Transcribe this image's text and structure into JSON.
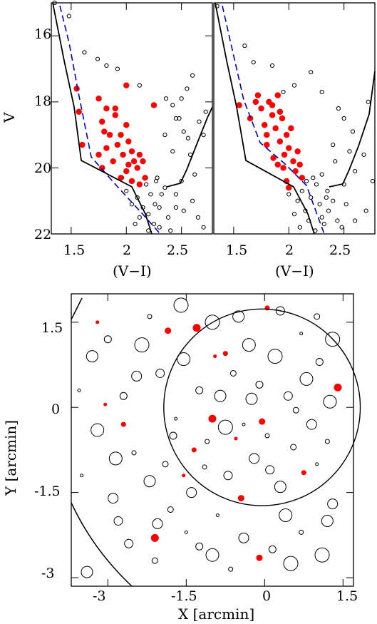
{
  "chart_data": [
    {
      "type": "scatter",
      "panel": "cmd-left",
      "xlabel": "(V−I)",
      "ylabel": "V",
      "xlim": [
        1.32,
        2.78
      ],
      "ylim": [
        22,
        15
      ],
      "y_inverted": true,
      "x_ticks": [
        "1.5",
        "2",
        "2.5"
      ],
      "y_ticks": [
        "16",
        "18",
        "20",
        "22"
      ],
      "colors": {
        "field": "#000000",
        "members": "#ff0000",
        "fit": "#0000cc"
      },
      "series": [
        {
          "points": [
            [
              1.55,
              17.6
            ],
            [
              1.57,
              18.3
            ],
            [
              1.6,
              19.3
            ],
            [
              1.75,
              17.9
            ],
            [
              1.78,
              18.6
            ],
            [
              1.8,
              18.9
            ],
            [
              1.82,
              19.4
            ],
            [
              1.85,
              19.0
            ],
            [
              1.9,
              18.2
            ],
            [
              1.88,
              19.8
            ],
            [
              1.92,
              19.3
            ],
            [
              1.95,
              19.0
            ],
            [
              1.97,
              19.6
            ],
            [
              2.0,
              18.7
            ],
            [
              2.02,
              19.2
            ],
            [
              2.05,
              19.5
            ],
            [
              2.07,
              19.8
            ],
            [
              2.1,
              20.0
            ],
            [
              2.12,
              19.6
            ],
            [
              2.15,
              19.8
            ],
            [
              2.0,
              20.1
            ],
            [
              1.95,
              20.3
            ],
            [
              1.75,
              19.6
            ],
            [
              1.78,
              20.0
            ],
            [
              2.05,
              20.4
            ],
            [
              2.17,
              20.3
            ],
            [
              2.25,
              18.1
            ],
            [
              2.0,
              17.5
            ],
            [
              1.9,
              18.4
            ],
            [
              1.82,
              18.2
            ],
            [
              2.02,
              19.9
            ],
            [
              2.12,
              20.5
            ]
          ]
        },
        {
          "points": [
            [
              1.35,
              15.0
            ],
            [
              1.48,
              15.4
            ],
            [
              1.62,
              16.5
            ],
            [
              1.74,
              16.7
            ],
            [
              1.82,
              16.9
            ],
            [
              1.92,
              17.0
            ],
            [
              2.12,
              17.5
            ],
            [
              2.36,
              17.9
            ],
            [
              2.42,
              18.1
            ],
            [
              2.48,
              18.5
            ],
            [
              2.52,
              18.9
            ],
            [
              2.56,
              19.1
            ],
            [
              2.58,
              19.6
            ],
            [
              2.62,
              20.2
            ],
            [
              2.7,
              19.0
            ],
            [
              2.72,
              18.3
            ],
            [
              2.66,
              18.6
            ],
            [
              2.45,
              18.5
            ],
            [
              2.5,
              17.9
            ],
            [
              2.55,
              17.6
            ],
            [
              2.6,
              17.2
            ],
            [
              2.35,
              19.0
            ],
            [
              2.42,
              19.5
            ],
            [
              2.28,
              20.3
            ],
            [
              2.32,
              20.8
            ],
            [
              2.5,
              20.4
            ],
            [
              2.45,
              21.2
            ],
            [
              2.38,
              21.5
            ],
            [
              2.52,
              21.3
            ],
            [
              2.18,
              20.5
            ],
            [
              2.22,
              20.8
            ],
            [
              2.26,
              21.1
            ],
            [
              2.2,
              21.4
            ],
            [
              2.25,
              21.7
            ],
            [
              2.3,
              21.2
            ],
            [
              2.27,
              20.4
            ],
            [
              2.35,
              20.6
            ],
            [
              2.1,
              20.9
            ],
            [
              2.15,
              21.2
            ],
            [
              2.12,
              21.5
            ],
            [
              2.2,
              21.9
            ],
            [
              2.3,
              21.8
            ],
            [
              2.4,
              21.9
            ],
            [
              2.05,
              21.1
            ],
            [
              2.08,
              21.7
            ],
            [
              2.45,
              20.8
            ],
            [
              2.6,
              21.0
            ],
            [
              2.65,
              21.5
            ],
            [
              2.7,
              21.8
            ],
            [
              2.0,
              20.7
            ],
            [
              1.96,
              20.3
            ]
          ]
        }
      ]
    },
    {
      "type": "scatter",
      "panel": "cmd-right",
      "xlabel": "(V−I)",
      "xlim": [
        1.32,
        2.78
      ],
      "ylim": [
        22,
        15
      ],
      "y_inverted": true,
      "x_ticks": [
        "1.5",
        "2",
        "2.5"
      ],
      "colors": {
        "field": "#000000",
        "members": "#ff0000",
        "fit": "#0000cc"
      },
      "series": [
        {
          "points": [
            [
              1.55,
              18.1
            ],
            [
              1.65,
              18.5
            ],
            [
              1.72,
              17.8
            ],
            [
              1.75,
              18.2
            ],
            [
              1.78,
              18.7
            ],
            [
              1.8,
              19.0
            ],
            [
              1.82,
              18.0
            ],
            [
              1.85,
              18.4
            ],
            [
              1.88,
              18.8
            ],
            [
              1.9,
              17.8
            ],
            [
              1.92,
              19.2
            ],
            [
              1.94,
              18.5
            ],
            [
              1.96,
              19.6
            ],
            [
              1.98,
              19.0
            ],
            [
              2.0,
              19.4
            ],
            [
              2.02,
              18.8
            ],
            [
              2.04,
              19.8
            ],
            [
              2.06,
              20.1
            ],
            [
              1.98,
              20.4
            ],
            [
              2.08,
              19.5
            ],
            [
              1.86,
              19.7
            ],
            [
              1.8,
              19.3
            ],
            [
              1.9,
              19.9
            ],
            [
              2.12,
              20.3
            ],
            [
              1.95,
              20.0
            ],
            [
              2.0,
              20.6
            ],
            [
              1.85,
              18.1
            ],
            [
              1.7,
              18.0
            ],
            [
              2.1,
              19.9
            ],
            [
              1.92,
              18.3
            ]
          ]
        },
        {
          "points": [
            [
              1.35,
              15.1
            ],
            [
              1.6,
              16.3
            ],
            [
              1.68,
              16.8
            ],
            [
              1.85,
              16.9
            ],
            [
              1.95,
              17.7
            ],
            [
              2.05,
              17.5
            ],
            [
              2.2,
              17.1
            ],
            [
              2.3,
              17.7
            ],
            [
              2.45,
              18.2
            ],
            [
              2.5,
              18.5
            ],
            [
              2.55,
              19.5
            ],
            [
              2.6,
              20.1
            ],
            [
              2.58,
              18.9
            ],
            [
              2.72,
              18.0
            ],
            [
              2.68,
              19.6
            ],
            [
              2.76,
              20.4
            ],
            [
              2.7,
              21.3
            ],
            [
              2.4,
              19.3
            ],
            [
              2.42,
              19.8
            ],
            [
              2.35,
              20.7
            ],
            [
              2.5,
              20.5
            ],
            [
              2.3,
              20.2
            ],
            [
              2.25,
              20.5
            ],
            [
              2.2,
              20.9
            ],
            [
              2.28,
              21.1
            ],
            [
              2.15,
              21.3
            ],
            [
              2.18,
              21.6
            ],
            [
              2.24,
              21.9
            ],
            [
              2.32,
              21.7
            ],
            [
              2.36,
              21.3
            ],
            [
              2.44,
              21.6
            ],
            [
              2.12,
              20.7
            ],
            [
              2.08,
              21.0
            ],
            [
              2.1,
              21.8
            ],
            [
              2.05,
              21.4
            ],
            [
              2.0,
              20.8
            ],
            [
              2.4,
              21.0
            ],
            [
              2.48,
              21.8
            ],
            [
              2.52,
              21.1
            ],
            [
              2.6,
              21.6
            ],
            [
              2.22,
              20.3
            ],
            [
              2.3,
              21.5
            ],
            [
              2.16,
              20.4
            ],
            [
              2.34,
              20.9
            ]
          ]
        }
      ]
    },
    {
      "type": "scatter",
      "panel": "spatial-map",
      "xlabel": "X [arcmin]",
      "ylabel": "Y [arcmin]",
      "xlim": [
        -3.7,
        1.7
      ],
      "ylim": [
        -3.15,
        2.0
      ],
      "x_ticks": [
        "-3",
        "-1.5",
        "0",
        "1.5"
      ],
      "y_ticks": [
        "-3",
        "-1.5",
        "0",
        "1.5"
      ],
      "colors": {
        "field": "#000000",
        "members": "#ff0000"
      },
      "series": [
        {
          "points": [
            [
              -3.05,
              0.05
            ],
            [
              -2.7,
              -0.3
            ],
            [
              -1.85,
              1.35
            ],
            [
              -1.3,
              1.4
            ],
            [
              -0.95,
              0.9
            ],
            [
              -0.75,
              0.95
            ],
            [
              -0.05,
              -0.25
            ],
            [
              -1.0,
              -0.2
            ],
            [
              -0.55,
              -0.55
            ],
            [
              -1.35,
              -0.75
            ],
            [
              -0.1,
              -2.65
            ],
            [
              -2.1,
              -2.3
            ],
            [
              -1.55,
              -1.2
            ],
            [
              0.75,
              -1.15
            ],
            [
              -0.45,
              -1.6
            ],
            [
              1.4,
              0.35
            ],
            [
              -3.2,
              1.5
            ],
            [
              0.05,
              1.75
            ]
          ]
        },
        {
          "points": [
            [
              -3.5,
              -1.2
            ],
            [
              -3.2,
              -0.4
            ],
            [
              -2.9,
              -1.6
            ],
            [
              -2.7,
              0.2
            ],
            [
              -2.5,
              -0.8
            ],
            [
              -2.35,
              1.1
            ],
            [
              -2.2,
              -1.3
            ],
            [
              -2.0,
              0.6
            ],
            [
              -1.9,
              -1.0
            ],
            [
              -1.7,
              -0.2
            ],
            [
              -1.55,
              0.85
            ],
            [
              -1.4,
              -1.5
            ],
            [
              -1.25,
              0.3
            ],
            [
              -1.1,
              -0.6
            ],
            [
              -1.0,
              1.5
            ],
            [
              -0.85,
              0.2
            ],
            [
              -0.7,
              -1.2
            ],
            [
              -0.6,
              0.6
            ],
            [
              -0.4,
              -0.3
            ],
            [
              -0.3,
              1.1
            ],
            [
              -0.2,
              -0.9
            ],
            [
              -0.1,
              0.4
            ],
            [
              0.05,
              -0.5
            ],
            [
              0.2,
              0.9
            ],
            [
              0.3,
              -1.4
            ],
            [
              0.45,
              0.2
            ],
            [
              0.55,
              -0.7
            ],
            [
              0.7,
              1.3
            ],
            [
              0.8,
              0.5
            ],
            [
              0.9,
              -0.3
            ],
            [
              1.05,
              0.8
            ],
            [
              1.2,
              -0.6
            ],
            [
              1.3,
              1.2
            ],
            [
              -3.3,
              0.9
            ],
            [
              -2.6,
              -2.4
            ],
            [
              -2.1,
              -2.7
            ],
            [
              -1.5,
              -2.2
            ],
            [
              -1.0,
              -2.6
            ],
            [
              -0.4,
              -2.3
            ],
            [
              0.15,
              -2.5
            ],
            [
              0.7,
              -2.2
            ],
            [
              1.1,
              -2.6
            ],
            [
              -3.4,
              -2.9
            ],
            [
              -2.8,
              -2.0
            ],
            [
              -1.8,
              -1.8
            ],
            [
              -0.9,
              -1.9
            ],
            [
              0.4,
              -1.9
            ],
            [
              1.3,
              -1.7
            ],
            [
              -3.0,
              1.2
            ],
            [
              -2.2,
              1.6
            ],
            [
              -1.6,
              1.8
            ],
            [
              -0.5,
              1.6
            ],
            [
              0.3,
              1.7
            ],
            [
              1.0,
              1.6
            ],
            [
              -3.55,
              0.3
            ],
            [
              -2.85,
              -0.9
            ],
            [
              -2.45,
              0.55
            ],
            [
              -1.75,
              -0.5
            ],
            [
              -1.15,
              -1.05
            ],
            [
              -0.75,
              -0.35
            ],
            [
              -0.25,
              0.15
            ],
            [
              0.1,
              -1.1
            ],
            [
              0.6,
              -0.05
            ],
            [
              1.0,
              -1.0
            ],
            [
              1.25,
              0.1
            ],
            [
              -2.05,
              -2.05
            ],
            [
              -1.25,
              -2.45
            ],
            [
              -0.65,
              -2.85
            ],
            [
              0.5,
              -2.75
            ],
            [
              1.2,
              -2.0
            ]
          ]
        }
      ],
      "cluster_circle": {
        "center": [
          -0.05,
          0.0
        ],
        "radius": 1.88
      }
    }
  ]
}
